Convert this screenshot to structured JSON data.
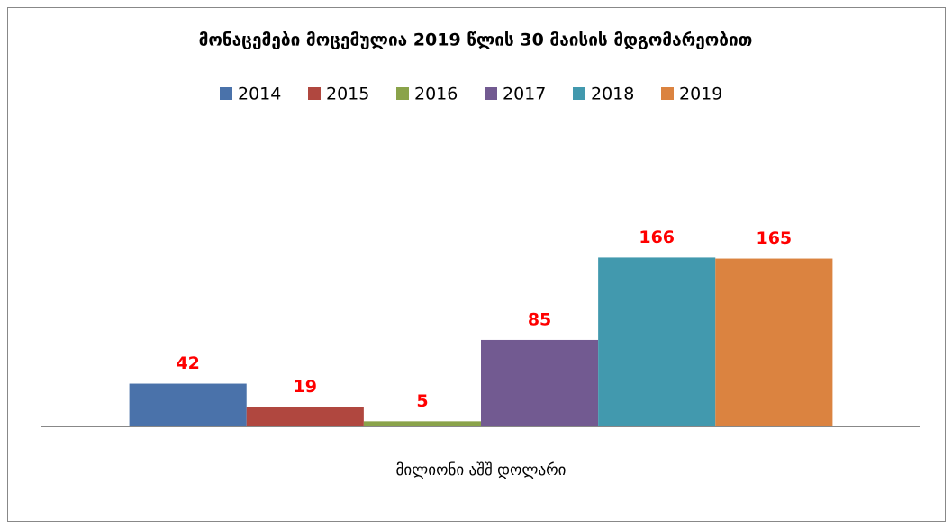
{
  "chart_data": {
    "type": "bar",
    "title": "მონაცემები მოცემულია 2019 წლის 30 მაისის მდგომარეობით",
    "categories": [
      "მილიონი აშშ დოლარი"
    ],
    "series": [
      {
        "name": "2014",
        "color": "#4a72aa",
        "values": [
          42
        ]
      },
      {
        "name": "2015",
        "color": "#b0473f",
        "values": [
          19
        ]
      },
      {
        "name": "2016",
        "color": "#8aa34a",
        "values": [
          5
        ]
      },
      {
        "name": "2017",
        "color": "#725a91",
        "values": [
          85
        ]
      },
      {
        "name": "2018",
        "color": "#4299ae",
        "values": [
          166
        ]
      },
      {
        "name": "2019",
        "color": "#db8340",
        "values": [
          165
        ]
      }
    ],
    "ylim": [
      0,
      200
    ],
    "legend": "top",
    "data_label_color": "#ff0000"
  }
}
